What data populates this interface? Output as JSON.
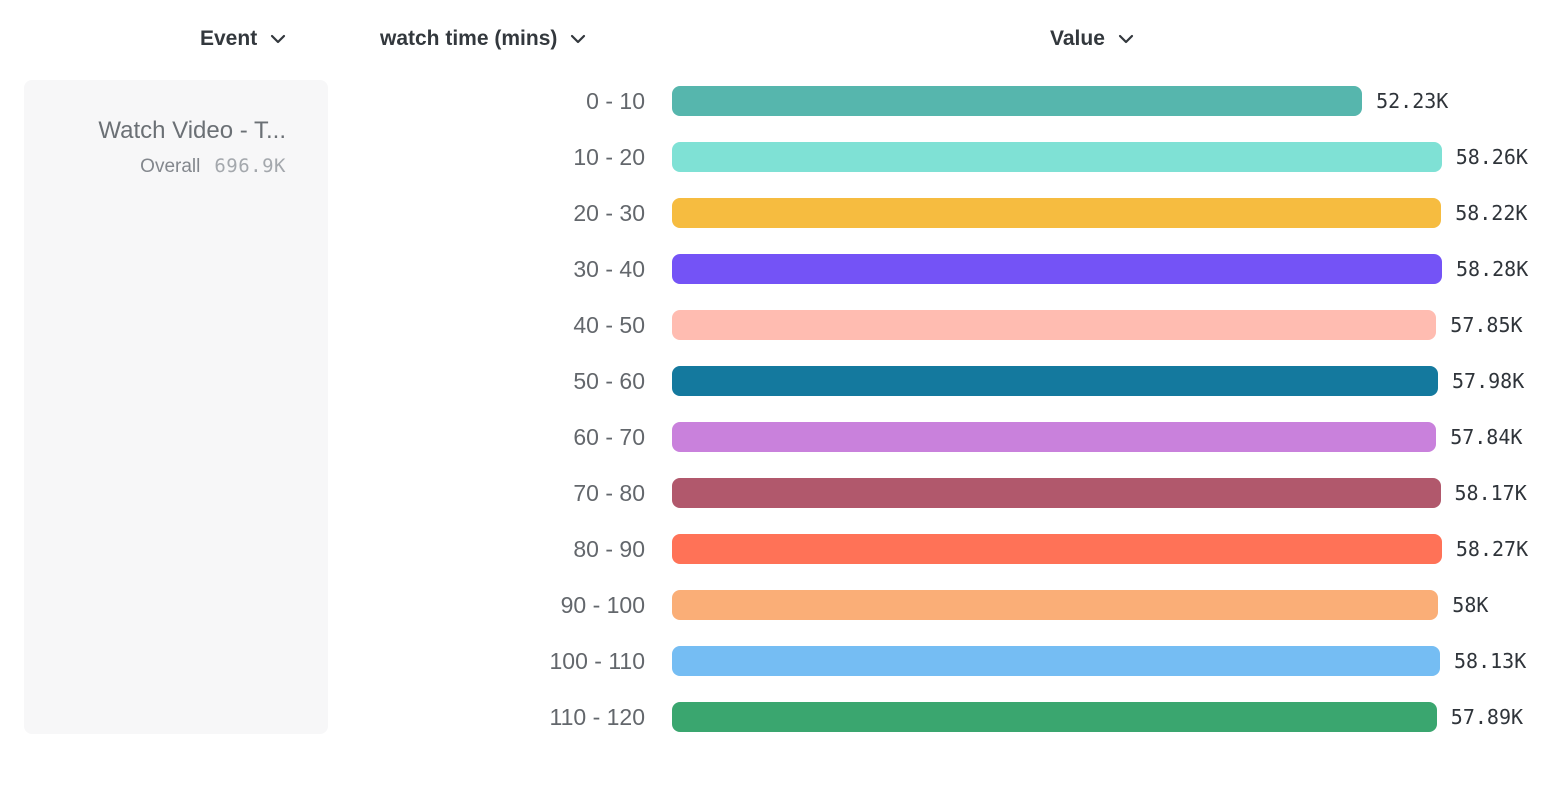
{
  "header": {
    "event": {
      "label": "Event"
    },
    "breakdown": {
      "label": "watch time (mins)"
    },
    "value": {
      "label": "Value"
    }
  },
  "legend": {
    "event_title": "Watch Video - T...",
    "overall_label": "Overall",
    "overall_value": "696.9K"
  },
  "chart_data": {
    "type": "bar",
    "orientation": "horizontal",
    "title": "",
    "series_name": "watch time (mins)",
    "categories": [
      "0 - 10",
      "10 - 20",
      "20 - 30",
      "30 - 40",
      "40 - 50",
      "50 - 60",
      "60 - 70",
      "70 - 80",
      "80 - 90",
      "90 - 100",
      "100 - 110",
      "110 - 120"
    ],
    "values": [
      52230,
      58260,
      58220,
      58280,
      57850,
      57980,
      57840,
      58170,
      58270,
      58000,
      58130,
      57890
    ],
    "value_labels": [
      "52.23K",
      "58.26K",
      "58.22K",
      "58.28K",
      "57.85K",
      "57.98K",
      "57.84K",
      "58.17K",
      "58.27K",
      "58K",
      "58.13K",
      "57.89K"
    ],
    "bar_colors": [
      "#56B6AD",
      "#7FE1D5",
      "#F6BC40",
      "#7453F6",
      "#FFBCB1",
      "#14799E",
      "#C981DC",
      "#B1586C",
      "#FF7257",
      "#FAAE77",
      "#75BDF3",
      "#3AA66F"
    ],
    "xlim": [
      0,
      58280
    ],
    "grid": false,
    "legend_position": "left"
  },
  "colors": {
    "header_text": "#33383d",
    "category_text": "#63676c",
    "value_text": "#2f343a",
    "card_bg": "#f7f7f8",
    "card_title_text": "#6b7075",
    "overall_label_text": "#83878d",
    "overall_value_text": "#a4a8ad"
  }
}
